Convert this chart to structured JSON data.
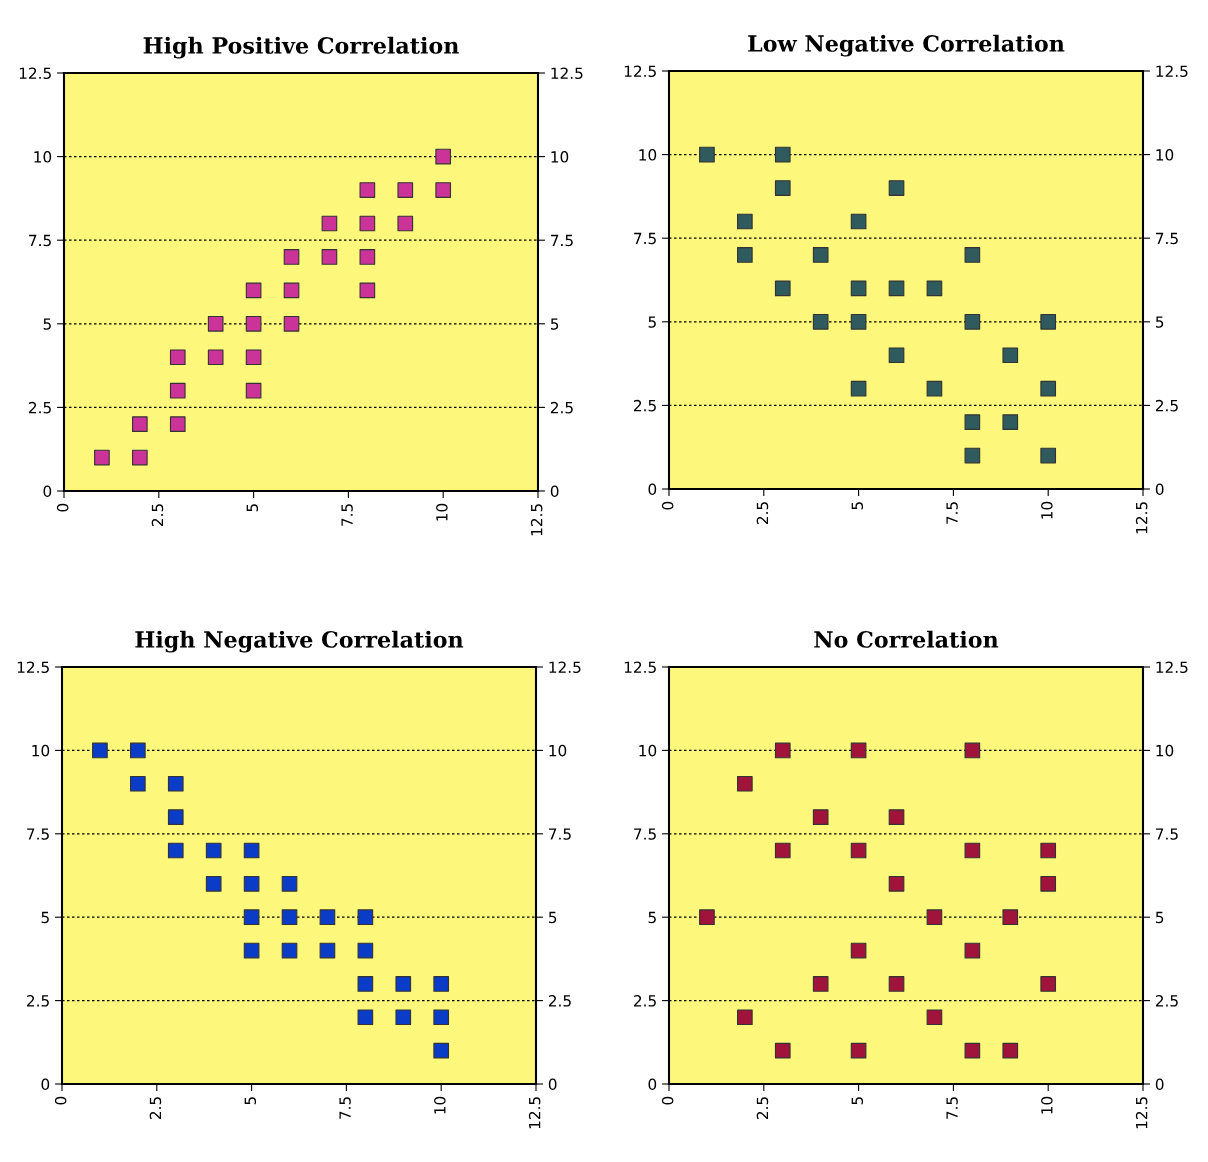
{
  "chart_data": [
    {
      "type": "scatter",
      "title": "High Positive Correlation",
      "marker": "square",
      "grid": "y",
      "xlim": [
        0,
        12.5
      ],
      "ylim": [
        0,
        12.5
      ],
      "y2lim": [
        0,
        12.5
      ],
      "xticks": [
        0,
        2.5,
        5,
        7.5,
        10,
        12.5
      ],
      "yticks": [
        0,
        2.5,
        5,
        7.5,
        10,
        12.5
      ],
      "y2ticks": [
        0,
        2.5,
        5,
        7.5,
        10,
        12.5
      ],
      "series": [
        {
          "color": "#cc3399",
          "x": [
            1,
            2,
            2,
            3,
            3,
            3,
            4,
            4,
            5,
            5,
            5,
            5,
            6,
            6,
            6,
            7,
            7,
            8,
            8,
            8,
            8,
            9,
            9,
            10,
            10
          ],
          "values": [
            1,
            1,
            2,
            2,
            3,
            4,
            4,
            5,
            3,
            4,
            5,
            6,
            5,
            6,
            7,
            7,
            8,
            6,
            7,
            8,
            9,
            8,
            9,
            9,
            10
          ]
        }
      ]
    },
    {
      "type": "scatter",
      "title": "Low Negative Correlation",
      "marker": "square",
      "grid": "y",
      "xlim": [
        0,
        12.5
      ],
      "ylim": [
        0,
        12.5
      ],
      "y2lim": [
        0,
        12.5
      ],
      "xticks": [
        0,
        2.5,
        5,
        7.5,
        10,
        12.5
      ],
      "yticks": [
        0,
        2.5,
        5,
        7.5,
        10,
        12.5
      ],
      "y2ticks": [
        0,
        2.5,
        5,
        7.5,
        10,
        12.5
      ],
      "series": [
        {
          "color": "#2f5a5e",
          "x": [
            1,
            3,
            3,
            6,
            2,
            5,
            2,
            4,
            8,
            3,
            5,
            6,
            7,
            4,
            5,
            8,
            10,
            6,
            9,
            5,
            7,
            10,
            8,
            9,
            8,
            10
          ],
          "values": [
            10,
            10,
            9,
            9,
            8,
            8,
            7,
            7,
            7,
            6,
            6,
            6,
            6,
            5,
            5,
            5,
            5,
            4,
            4,
            3,
            3,
            3,
            2,
            2,
            1,
            1
          ]
        }
      ]
    },
    {
      "type": "scatter",
      "title": "High Negative Correlation",
      "marker": "square",
      "grid": "y",
      "xlim": [
        0,
        12.5
      ],
      "ylim": [
        0,
        12.5
      ],
      "y2lim": [
        0,
        12.5
      ],
      "xticks": [
        0,
        2.5,
        5,
        7.5,
        10,
        12.5
      ],
      "yticks": [
        0,
        2.5,
        5,
        7.5,
        10,
        12.5
      ],
      "y2ticks": [
        0,
        2.5,
        5,
        7.5,
        10,
        12.5
      ],
      "series": [
        {
          "color": "#0a3cc8",
          "x": [
            1,
            2,
            2,
            3,
            3,
            3,
            4,
            5,
            4,
            5,
            6,
            5,
            6,
            7,
            8,
            5,
            6,
            7,
            8,
            8,
            9,
            10,
            8,
            9,
            10,
            10
          ],
          "values": [
            10,
            10,
            9,
            9,
            8,
            7,
            7,
            7,
            6,
            6,
            6,
            5,
            5,
            5,
            5,
            4,
            4,
            4,
            4,
            3,
            3,
            3,
            2,
            2,
            2,
            1
          ]
        }
      ]
    },
    {
      "type": "scatter",
      "title": "No Correlation",
      "marker": "square",
      "grid": "y",
      "xlim": [
        0,
        12.5
      ],
      "ylim": [
        0,
        12.5
      ],
      "y2lim": [
        0,
        12.5
      ],
      "xticks": [
        0,
        2.5,
        5,
        7.5,
        10,
        12.5
      ],
      "yticks": [
        0,
        2.5,
        5,
        7.5,
        10,
        12.5
      ],
      "y2ticks": [
        0,
        2.5,
        5,
        7.5,
        10,
        12.5
      ],
      "series": [
        {
          "color": "#a0143c",
          "x": [
            3,
            5,
            8,
            2,
            4,
            6,
            3,
            5,
            8,
            10,
            6,
            10,
            1,
            7,
            9,
            5,
            8,
            4,
            6,
            10,
            2,
            7,
            3,
            5,
            8,
            9
          ],
          "values": [
            10,
            10,
            10,
            9,
            8,
            8,
            7,
            7,
            7,
            7,
            6,
            6,
            5,
            5,
            5,
            4,
            4,
            3,
            3,
            3,
            2,
            2,
            1,
            1,
            1,
            1
          ]
        }
      ]
    }
  ]
}
